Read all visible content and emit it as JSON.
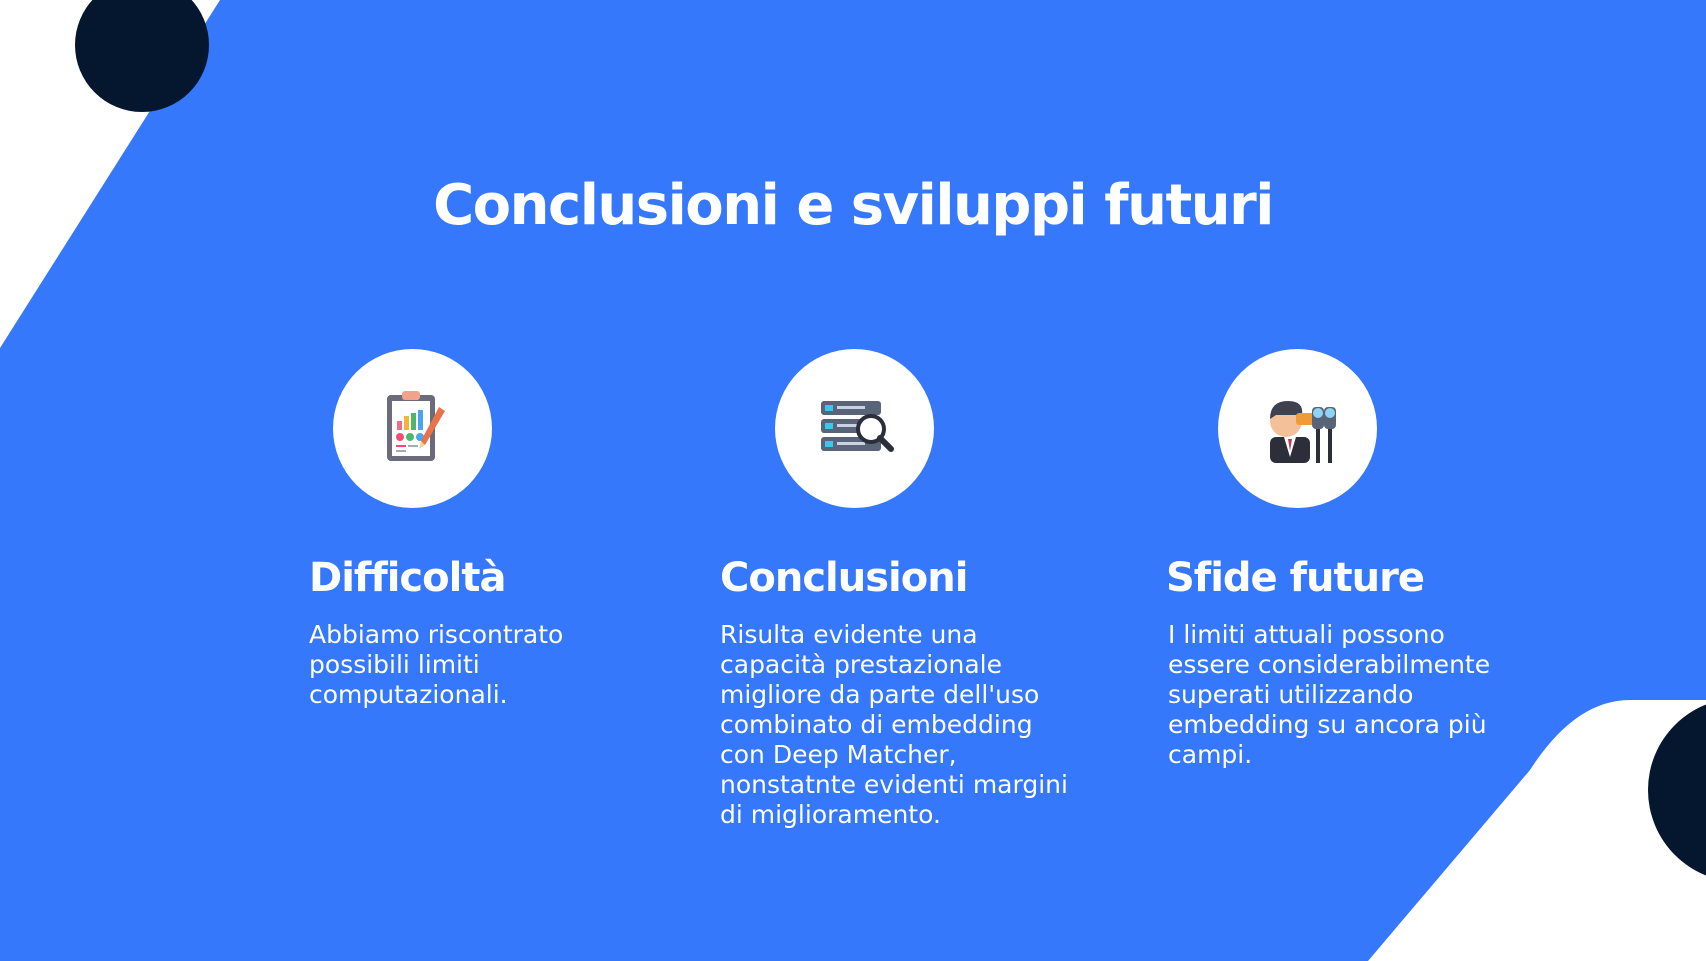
{
  "slide": {
    "title": "Conclusioni e sviluppi futuri"
  },
  "columns": [
    {
      "icon": "clipboard-chart-icon",
      "heading": "Difficoltà",
      "lines": [
        "Abbiamo riscontrato",
        "possibili limiti",
        "computazionali."
      ]
    },
    {
      "icon": "database-search-icon",
      "heading": "Conclusioni",
      "lines": [
        "Risulta evidente una",
        "capacità prestazionale",
        "migliore da parte dell'uso",
        "combinato di embedding",
        "con Deep Matcher,",
        "nonstatnte evidenti margini",
        "di miglioramento."
      ]
    },
    {
      "icon": "man-binoculars-icon",
      "heading": "Sfide future",
      "lines": [
        "I limiti attuali possono",
        "essere considerabilmente",
        "superati utilizzando",
        "embedding su ancora più",
        "campi."
      ]
    }
  ],
  "colors": {
    "background": "#3578fb",
    "accent_dark": "#04172f",
    "text": "#ffffff"
  }
}
